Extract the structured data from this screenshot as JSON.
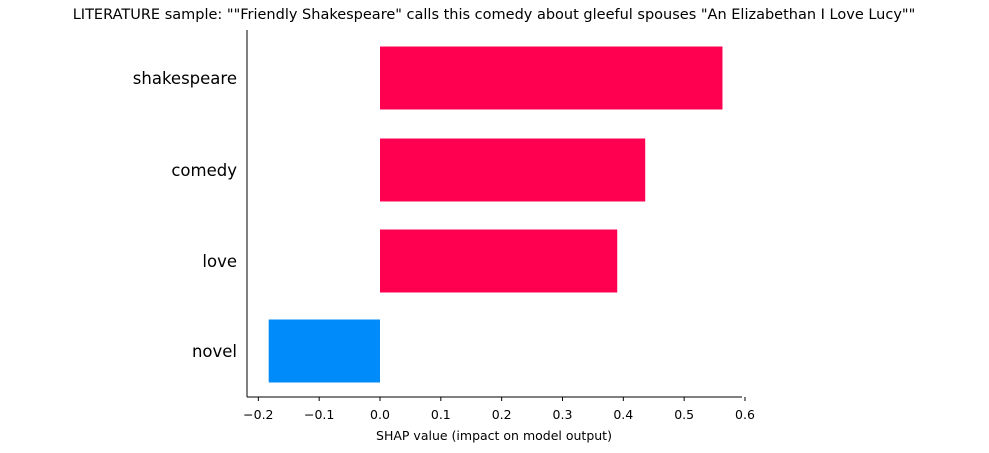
{
  "chart_data": {
    "type": "bar",
    "orientation": "horizontal",
    "title": "LITERATURE sample: \"\"Friendly Shakespeare\" calls this comedy about gleeful spouses \"An Elizabethan I Love Lucy\"\"",
    "xlabel": "SHAP value (impact on model output)",
    "ylabel": "",
    "categories": [
      "shakespeare",
      "comedy",
      "love",
      "novel"
    ],
    "values": [
      0.563,
      0.436,
      0.39,
      -0.183
    ],
    "xlim": [
      -0.225,
      0.605
    ],
    "xticks": [
      -0.2,
      -0.1,
      0.0,
      0.1,
      0.2,
      0.3,
      0.4,
      0.5,
      0.6
    ],
    "xtick_labels": [
      "−0.2",
      "−0.1",
      "0.0",
      "0.1",
      "0.2",
      "0.3",
      "0.4",
      "0.5",
      "0.6"
    ],
    "colors": {
      "positive": "#ff0051",
      "negative": "#008bfb",
      "axis": "#000000"
    },
    "grid": false,
    "legend": "none"
  }
}
